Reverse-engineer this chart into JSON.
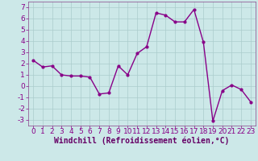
{
  "x": [
    0,
    1,
    2,
    3,
    4,
    5,
    6,
    7,
    8,
    9,
    10,
    11,
    12,
    13,
    14,
    15,
    16,
    17,
    18,
    19,
    20,
    21,
    22,
    23
  ],
  "y": [
    2.3,
    1.7,
    1.8,
    1.0,
    0.9,
    0.9,
    0.8,
    -0.7,
    -0.6,
    1.8,
    1.0,
    2.9,
    3.5,
    6.5,
    6.3,
    5.7,
    5.7,
    6.8,
    3.9,
    -3.1,
    -0.4,
    0.1,
    -0.3,
    -1.4
  ],
  "line_color": "#880088",
  "marker": ".",
  "marker_size": 4,
  "bg_color": "#cce8e8",
  "grid_color": "#aacccc",
  "xlabel": "Windchill (Refroidissement éolien,°C)",
  "ylim": [
    -3.5,
    7.5
  ],
  "xlim": [
    -0.5,
    23.5
  ],
  "yticks": [
    -3,
    -2,
    -1,
    0,
    1,
    2,
    3,
    4,
    5,
    6,
    7
  ],
  "xticks": [
    0,
    1,
    2,
    3,
    4,
    5,
    6,
    7,
    8,
    9,
    10,
    11,
    12,
    13,
    14,
    15,
    16,
    17,
    18,
    19,
    20,
    21,
    22,
    23
  ],
  "xlabel_color": "#660066",
  "xlabel_fontsize": 7,
  "tick_fontsize": 6.5,
  "line_width": 1.0,
  "spine_color": "#884488"
}
